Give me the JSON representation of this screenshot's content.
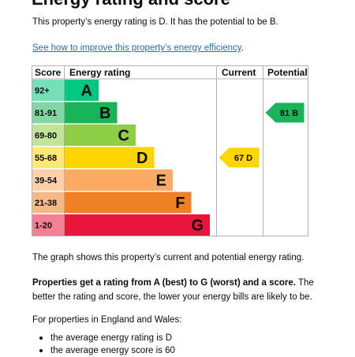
{
  "page": {
    "heading": "Energy rating and score",
    "intro": "This property’s energy rating is D. It has the potential to be B.",
    "link_text": "See how to improve this property’s energy efficiency",
    "link_suffix": ".",
    "graph_note": "The graph shows this property’s current and potential energy rating.",
    "rating_bold": "Properties get a rating from A (best) to G (worst) and a score.",
    "rating_rest": " The better the rating and score, the lower your energy bills are likely to be.",
    "region_intro": "For properties in England and Wales:",
    "bullets": [
      "the average energy rating is D",
      "the average energy score is 60"
    ]
  },
  "chart_data": {
    "type": "bar",
    "columns": [
      "Score",
      "Energy rating",
      "Current",
      "Potential"
    ],
    "bands": [
      {
        "score": "92+",
        "letter": "A",
        "color": "#00c781"
      },
      {
        "score": "81-91",
        "letter": "B",
        "color": "#19b459"
      },
      {
        "score": "69-80",
        "letter": "C",
        "color": "#8dce46"
      },
      {
        "score": "55-68",
        "letter": "D",
        "color": "#ffd500"
      },
      {
        "score": "39-54",
        "letter": "E",
        "color": "#fcaa65"
      },
      {
        "score": "21-38",
        "letter": "F",
        "color": "#ef8023"
      },
      {
        "score": "1-20",
        "letter": "G",
        "color": "#e9153b"
      }
    ],
    "current": {
      "value": 67,
      "letter": "D",
      "label": "67  D",
      "color": "#ffd500"
    },
    "potential": {
      "value": 81,
      "letter": "B",
      "label": "81  B",
      "color": "#19b459"
    }
  }
}
